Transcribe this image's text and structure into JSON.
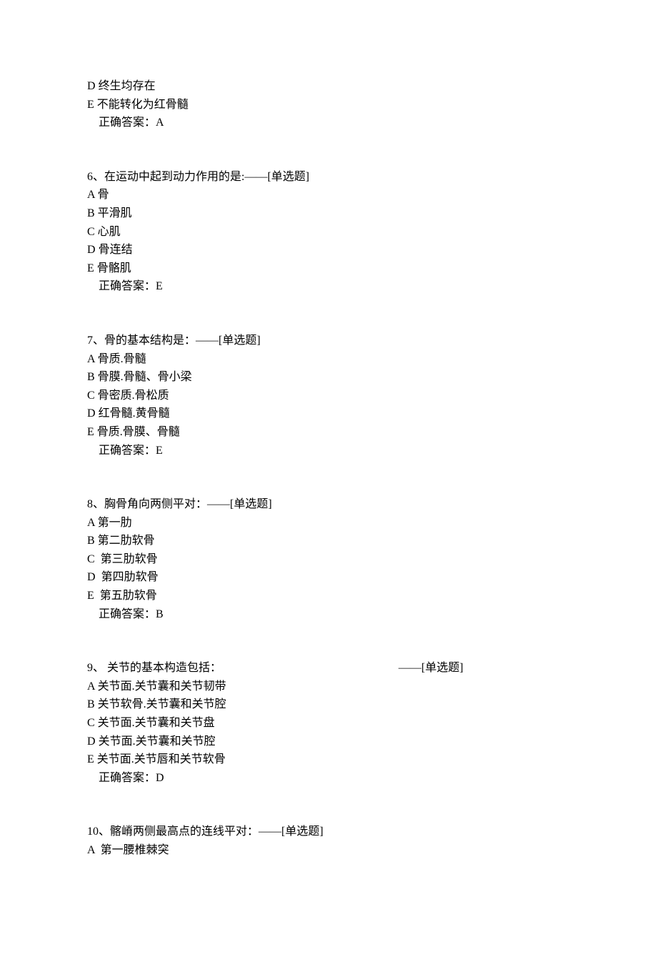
{
  "q5_tail": {
    "options": [
      {
        "label": "D",
        "text": "终生均存在"
      },
      {
        "label": "E",
        "text": "不能转化为红骨髓"
      }
    ],
    "answer_prefix": "正确答案：",
    "answer": "A"
  },
  "q6": {
    "stem": "6、在运动中起到动力作用的是:——[单选题]",
    "options": [
      {
        "label": "A",
        "text": "骨"
      },
      {
        "label": "B",
        "text": "平滑肌"
      },
      {
        "label": "C",
        "text": "心肌"
      },
      {
        "label": "D",
        "text": "骨连结"
      },
      {
        "label": "E",
        "text": "骨骼肌"
      }
    ],
    "answer_prefix": "正确答案：",
    "answer": "E"
  },
  "q7": {
    "stem": "7、骨的基本结构是：——[单选题]",
    "options": [
      {
        "label": "A",
        "text": "骨质.骨髓"
      },
      {
        "label": "B",
        "text": "骨膜.骨髓、骨小梁"
      },
      {
        "label": "C",
        "text": "骨密质.骨松质"
      },
      {
        "label": "D",
        "text": "红骨髓.黄骨髓"
      },
      {
        "label": "E",
        "text": "骨质.骨膜、骨髓"
      }
    ],
    "answer_prefix": "正确答案：",
    "answer": "E"
  },
  "q8": {
    "stem": "8、胸骨角向两侧平对：——[单选题]",
    "options": [
      {
        "label": "A",
        "text": "第一肋"
      },
      {
        "label": "B",
        "text": "第二肋软骨"
      },
      {
        "label": "C",
        "text": " 第三肋软骨"
      },
      {
        "label": "D",
        "text": " 第四肋软骨"
      },
      {
        "label": "E",
        "text": " 第五肋软骨"
      }
    ],
    "answer_prefix": "正确答案：",
    "answer": "B"
  },
  "q9": {
    "stem_left": "9、 关节的基本构造包括：",
    "stem_right": "——[单选题]",
    "options": [
      {
        "label": "A",
        "text": "关节面.关节囊和关节韧带"
      },
      {
        "label": "B",
        "text": "关节软骨.关节囊和关节腔"
      },
      {
        "label": "C",
        "text": "关节面.关节囊和关节盘"
      },
      {
        "label": "D",
        "text": "关节面.关节囊和关节腔"
      },
      {
        "label": "E",
        "text": "关节面.关节唇和关节软骨"
      }
    ],
    "answer_prefix": "正确答案：",
    "answer": "D"
  },
  "q10": {
    "stem": "10、髂嵴两侧最高点的连线平对：——[单选题]",
    "options": [
      {
        "label": "A",
        "text": " 第一腰椎棘突"
      }
    ]
  }
}
